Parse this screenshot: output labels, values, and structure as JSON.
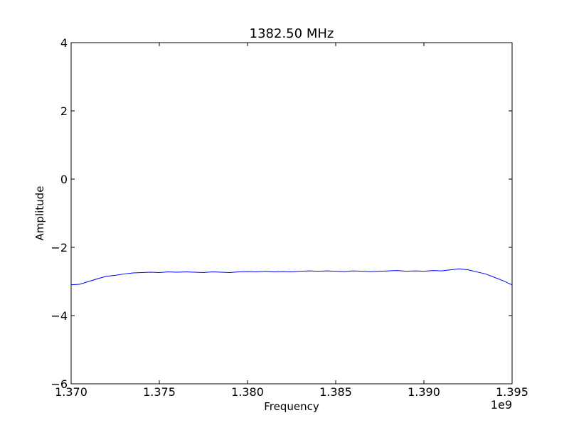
{
  "chart_data": {
    "type": "line",
    "title": "1382.50 MHz",
    "xlabel": "Frequency",
    "ylabel": "Amplitude",
    "x_offset_label": "1e9",
    "xlim": [
      1.37,
      1.395
    ],
    "ylim": [
      -6,
      4
    ],
    "x_ticks": [
      1.37,
      1.375,
      1.38,
      1.385,
      1.39,
      1.395
    ],
    "x_tick_labels": [
      "1.370",
      "1.375",
      "1.380",
      "1.385",
      "1.390",
      "1.395"
    ],
    "y_ticks": [
      -6,
      -4,
      -2,
      0,
      2,
      4
    ],
    "y_tick_labels": [
      "−6",
      "−4",
      "−2",
      "0",
      "2",
      "4"
    ],
    "grid": false,
    "series": [
      {
        "color": "#0000ff",
        "x": [
          1.37,
          1.3705,
          1.371,
          1.3715,
          1.372,
          1.3725,
          1.373,
          1.3735,
          1.374,
          1.3745,
          1.375,
          1.3755,
          1.376,
          1.3765,
          1.377,
          1.3775,
          1.378,
          1.3785,
          1.379,
          1.3795,
          1.38,
          1.3805,
          1.381,
          1.3815,
          1.382,
          1.3825,
          1.383,
          1.3835,
          1.384,
          1.3845,
          1.385,
          1.3855,
          1.386,
          1.3865,
          1.387,
          1.3875,
          1.388,
          1.3885,
          1.389,
          1.3895,
          1.39,
          1.3905,
          1.391,
          1.3915,
          1.392,
          1.3925,
          1.393,
          1.3935,
          1.394,
          1.3945,
          1.395
        ],
        "y": [
          -3.1,
          -3.08,
          -3.0,
          -2.92,
          -2.85,
          -2.82,
          -2.78,
          -2.75,
          -2.74,
          -2.73,
          -2.74,
          -2.72,
          -2.73,
          -2.72,
          -2.73,
          -2.74,
          -2.72,
          -2.73,
          -2.74,
          -2.72,
          -2.71,
          -2.72,
          -2.7,
          -2.72,
          -2.71,
          -2.72,
          -2.7,
          -2.69,
          -2.7,
          -2.69,
          -2.7,
          -2.71,
          -2.69,
          -2.7,
          -2.71,
          -2.7,
          -2.69,
          -2.68,
          -2.7,
          -2.69,
          -2.7,
          -2.68,
          -2.69,
          -2.66,
          -2.63,
          -2.66,
          -2.72,
          -2.78,
          -2.88,
          -2.98,
          -3.1
        ]
      }
    ]
  }
}
